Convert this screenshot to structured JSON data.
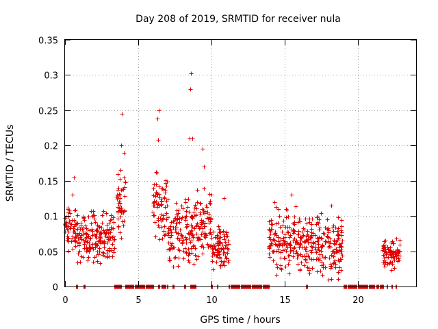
{
  "chart_data": {
    "type": "scatter",
    "title": "Day 208 of 2019, SRMTID for receiver nula",
    "xlabel": "GPS time / hours",
    "ylabel": "SRMTID / TECUs",
    "xlim": [
      0,
      24
    ],
    "ylim": [
      0,
      0.35
    ],
    "xticks": [
      0,
      5,
      10,
      15,
      20
    ],
    "xtick_labels": [
      "0",
      "5",
      "10",
      "15",
      "20"
    ],
    "yticks": [
      0,
      0.05,
      0.1,
      0.15,
      0.2,
      0.25,
      0.3,
      0.35
    ],
    "ytick_labels": [
      "0",
      "0.05",
      "0.1",
      "0.15",
      "0.2",
      "0.25",
      "0.3",
      "0.35"
    ],
    "grid": true,
    "marker": "plus",
    "marker_color": "#e00000",
    "series": [
      {
        "name": "SRMTID",
        "clusters": [
          {
            "x": [
              0.0,
              0.8
            ],
            "y": [
              0.04,
              0.12
            ]
          },
          {
            "x": [
              0.8,
              3.4
            ],
            "y": [
              0.03,
              0.11
            ]
          },
          {
            "x": [
              3.5,
              4.2
            ],
            "y": [
              0.06,
              0.18
            ]
          },
          {
            "x": [
              6.0,
              7.0
            ],
            "y": [
              0.06,
              0.17
            ]
          },
          {
            "x": [
              7.0,
              9.0
            ],
            "y": [
              0.02,
              0.13
            ]
          },
          {
            "x": [
              9.0,
              10.0
            ],
            "y": [
              0.03,
              0.15
            ]
          },
          {
            "x": [
              10.0,
              11.2
            ],
            "y": [
              0.02,
              0.09
            ]
          },
          {
            "x": [
              13.9,
              16.0
            ],
            "y": [
              0.01,
              0.12
            ]
          },
          {
            "x": [
              16.0,
              19.0
            ],
            "y": [
              0.01,
              0.11
            ]
          },
          {
            "x": [
              21.7,
              22.9
            ],
            "y": [
              0.02,
              0.07
            ]
          }
        ],
        "peaks": [
          {
            "x": 0.5,
            "y": 0.13
          },
          {
            "x": 0.6,
            "y": 0.155
          },
          {
            "x": 3.9,
            "y": 0.245
          },
          {
            "x": 3.85,
            "y": 0.2
          },
          {
            "x": 4.0,
            "y": 0.19
          },
          {
            "x": 6.4,
            "y": 0.25
          },
          {
            "x": 6.3,
            "y": 0.238
          },
          {
            "x": 6.35,
            "y": 0.208
          },
          {
            "x": 8.6,
            "y": 0.302
          },
          {
            "x": 8.55,
            "y": 0.28
          },
          {
            "x": 8.5,
            "y": 0.21
          },
          {
            "x": 8.7,
            "y": 0.21
          },
          {
            "x": 9.4,
            "y": 0.195
          },
          {
            "x": 9.5,
            "y": 0.17
          },
          {
            "x": 10.85,
            "y": 0.125
          },
          {
            "x": 14.3,
            "y": 0.12
          },
          {
            "x": 15.5,
            "y": 0.13
          },
          {
            "x": 18.2,
            "y": 0.115
          },
          {
            "x": 18.0,
            "y": 0.01
          }
        ],
        "zero_segments": [
          [
            0.75,
            0.85
          ],
          [
            1.25,
            1.35
          ],
          [
            3.35,
            3.85
          ],
          [
            4.1,
            6.05
          ],
          [
            6.35,
            6.45
          ],
          [
            6.6,
            7.0
          ],
          [
            7.35,
            7.45
          ],
          [
            8.15,
            8.25
          ],
          [
            8.55,
            8.95
          ],
          [
            9.95,
            10.05
          ],
          [
            10.4,
            10.45
          ],
          [
            11.2,
            13.95
          ],
          [
            16.45,
            16.55
          ],
          [
            19.05,
            21.15
          ],
          [
            21.3,
            21.75
          ],
          [
            22.0,
            22.05
          ],
          [
            22.3,
            22.35
          ],
          [
            22.6,
            22.65
          ]
        ]
      }
    ]
  }
}
